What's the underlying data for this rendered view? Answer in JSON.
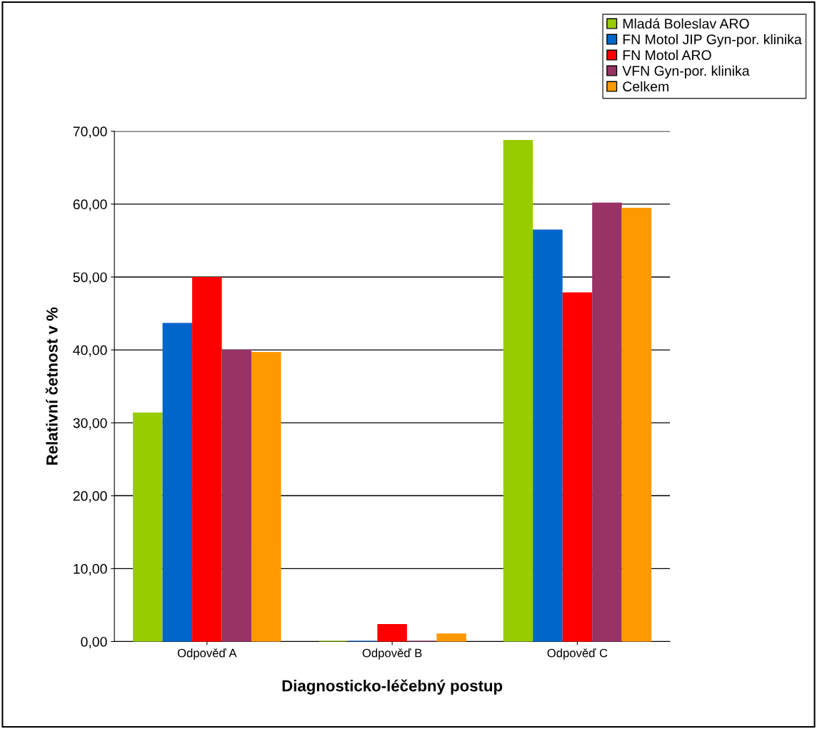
{
  "chart_data": {
    "type": "bar",
    "xlabel": "Diagnosticko-léčebný postup",
    "ylabel": "Relativní četnost v %",
    "categories": [
      "Odpověď A",
      "Odpověď B",
      "Odpověď C"
    ],
    "series": [
      {
        "name": "Mladá Boleslav ARO",
        "color": "#99cc00",
        "values": [
          31.3,
          0,
          68.7
        ]
      },
      {
        "name": "FN Motol JIP Gyn-por. klinika",
        "color": "#0066cc",
        "values": [
          43.6,
          0,
          56.4
        ]
      },
      {
        "name": "FN Motol ARO",
        "color": "#ff0000",
        "values": [
          49.9,
          2.3,
          47.8
        ]
      },
      {
        "name": "VFN Gyn-por. klinika",
        "color": "#993366",
        "values": [
          39.9,
          0,
          60.1
        ]
      },
      {
        "name": "Celkem",
        "color": "#ff9900",
        "values": [
          39.6,
          1.0,
          59.4
        ]
      }
    ],
    "ylim": [
      0,
      70
    ],
    "yticks": [
      {
        "value": 0,
        "label": "0,00"
      },
      {
        "value": 10,
        "label": "10,00"
      },
      {
        "value": 20,
        "label": "20,00"
      },
      {
        "value": 30,
        "label": "30,00"
      },
      {
        "value": 40,
        "label": "40,00"
      },
      {
        "value": 50,
        "label": "50,00"
      },
      {
        "value": 60,
        "label": "60,00"
      },
      {
        "value": 70,
        "label": "70,00"
      }
    ],
    "grid": "y",
    "legend": "top right"
  }
}
